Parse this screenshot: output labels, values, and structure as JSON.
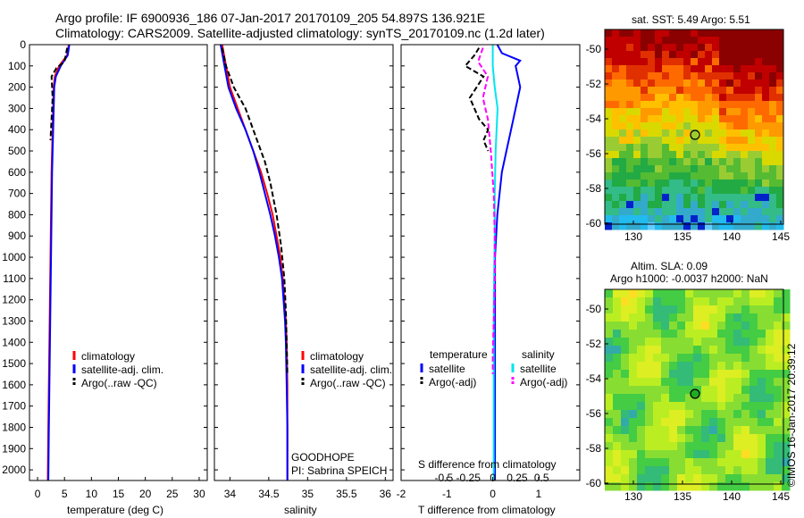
{
  "header": {
    "line1": "Argo profile: IF 6900936_186 07-Jan-2017 20170109_205 54.897S 136.921E",
    "line2": "Climatology: CARS2009. Satellite-adjusted climatology: synTS_20170109.nc (1.2d later)"
  },
  "colors": {
    "climatology": "#ff0000",
    "satellite": "#0000ff",
    "argo": "#000000",
    "sal_satellite": "#00e5ee",
    "sal_argo": "#ff00ff"
  },
  "chart_data": [
    {
      "type": "line",
      "name": "temperature",
      "xlabel": "temperature (deg C)",
      "ylabel": "",
      "xlim": [
        -1.5,
        31.5
      ],
      "ylim": [
        2050,
        0
      ],
      "xticks": [
        0,
        5,
        10,
        15,
        20,
        25,
        30
      ],
      "yticks": [
        0,
        100,
        200,
        300,
        400,
        500,
        600,
        700,
        800,
        900,
        1000,
        1100,
        1200,
        1300,
        1400,
        1500,
        1600,
        1700,
        1800,
        1900,
        2000
      ],
      "legend": [
        "climatology",
        "satellite-adj. clim.",
        "Argo(..raw -QC)"
      ],
      "legend_position": "lower-right",
      "series": [
        {
          "name": "climatology",
          "style": "solid",
          "x": [
            5.8,
            5.5,
            4.0,
            3.2,
            3.0,
            2.8,
            2.6,
            2.5,
            2.4,
            2.3,
            2.2,
            2.1,
            2.0,
            1.9
          ],
          "y": [
            0,
            50,
            100,
            150,
            200,
            400,
            600,
            800,
            1000,
            1200,
            1400,
            1600,
            1800,
            2050
          ]
        },
        {
          "name": "satellite-adj. clim.",
          "style": "solid",
          "x": [
            5.9,
            5.6,
            4.3,
            3.4,
            3.1,
            2.9,
            2.7,
            2.6,
            2.5,
            2.4,
            2.3,
            2.2,
            2.1,
            2.0
          ],
          "y": [
            0,
            50,
            100,
            150,
            200,
            400,
            600,
            800,
            1000,
            1200,
            1400,
            1600,
            1800,
            2050
          ]
        },
        {
          "name": "Argo(..raw -QC)",
          "style": "dashed",
          "x": [
            5.5,
            5.0,
            3.5,
            2.6,
            2.8,
            2.5,
            2.4
          ],
          "y": [
            15,
            80,
            110,
            150,
            250,
            400,
            450
          ]
        }
      ]
    },
    {
      "type": "line",
      "name": "salinity",
      "xlabel": "salinity",
      "ylabel": "",
      "xlim": [
        33.8,
        36.1
      ],
      "ylim": [
        2050,
        0
      ],
      "xticks": [
        34,
        34.5,
        35,
        35.5,
        36
      ],
      "xtick_labels": [
        "34",
        "34.5",
        "35",
        "35.5",
        "36"
      ],
      "legend": [
        "climatology",
        "satellite-adj. clim.",
        "Argo(..raw -QC)"
      ],
      "legend_position": "lower-right",
      "annotations": [
        "GOODHOPE",
        "PI: Sabrina SPEICH"
      ],
      "series": [
        {
          "name": "climatology",
          "style": "solid",
          "x": [
            33.9,
            33.95,
            34.0,
            34.1,
            34.2,
            34.3,
            34.4,
            34.48,
            34.55,
            34.6,
            34.65,
            34.68,
            34.7,
            34.72,
            34.73,
            34.74,
            34.74,
            34.74
          ],
          "y": [
            0,
            100,
            200,
            300,
            400,
            500,
            600,
            700,
            800,
            900,
            1000,
            1100,
            1200,
            1300,
            1400,
            1600,
            1800,
            2050
          ]
        },
        {
          "name": "satellite-adj. clim.",
          "style": "solid",
          "x": [
            33.88,
            33.93,
            33.98,
            34.08,
            34.2,
            34.3,
            34.38,
            34.45,
            34.52,
            34.58,
            34.63,
            34.67,
            34.69,
            34.71,
            34.72,
            34.73,
            34.74,
            34.74
          ],
          "y": [
            0,
            100,
            200,
            300,
            400,
            500,
            600,
            700,
            800,
            900,
            1000,
            1100,
            1200,
            1300,
            1400,
            1600,
            1800,
            2050
          ]
        },
        {
          "name": "Argo(..raw -QC)",
          "style": "dashed",
          "x": [
            33.9,
            33.95,
            34.05,
            34.2,
            34.35,
            34.45,
            34.52,
            34.6,
            34.66,
            34.7,
            34.72,
            34.73,
            34.74
          ],
          "y": [
            15,
            100,
            200,
            300,
            450,
            550,
            650,
            800,
            950,
            1100,
            1250,
            1400,
            1550
          ]
        }
      ]
    },
    {
      "type": "line",
      "name": "differences",
      "xlabel": "T difference from climatology",
      "xlabel2": "S difference from climatology",
      "ylabel": "",
      "xlim": [
        -2.0,
        1.9
      ],
      "ylim": [
        2050,
        0
      ],
      "xticks": [
        -2,
        -1,
        0,
        1
      ],
      "xtick_labels": [
        "-2",
        "-1",
        "0",
        "1"
      ],
      "xticks2": [
        -0.5,
        -0.25,
        0,
        0.25,
        0.5
      ],
      "xtick2_labels": [
        "-0.5",
        "-0.25",
        "0",
        "0.25",
        "0.5"
      ],
      "legend_groups": [
        "temperature",
        "salinity"
      ],
      "legend": [
        "satellite",
        "Argo(-adj)",
        "satellite",
        "Argo(-adj)"
      ],
      "legend_position": "lower-right",
      "series": [
        {
          "name": "temperature satellite",
          "style": "solid",
          "x": [
            0.1,
            0.2,
            0.6,
            0.5,
            0.6,
            0.5,
            0.4,
            0.3,
            0.2,
            0.1,
            0.05,
            0.05,
            0.05
          ],
          "y": [
            0,
            40,
            75,
            100,
            200,
            300,
            400,
            500,
            600,
            800,
            1000,
            1500,
            2050
          ]
        },
        {
          "name": "temperature Argo(-adj)",
          "style": "dashed",
          "x": [
            -0.3,
            -0.4,
            -0.6,
            -0.2,
            -0.5,
            -0.3,
            -0.1,
            -0.2,
            -0.1
          ],
          "y": [
            15,
            50,
            100,
            150,
            250,
            350,
            400,
            450,
            500
          ]
        },
        {
          "name": "salinity satellite",
          "style": "solid",
          "x": [
            0.0,
            0.0,
            0.02,
            0.05,
            0.03,
            0.02,
            0.02,
            0.01,
            0.01,
            0.01
          ],
          "y": [
            0,
            100,
            200,
            300,
            500,
            700,
            900,
            1200,
            1500,
            2050
          ]
        },
        {
          "name": "salinity Argo(-adj)",
          "style": "dashed",
          "x": [
            -0.1,
            -0.15,
            -0.05,
            -0.1,
            -0.05,
            -0.02,
            0.01,
            0.02,
            0.02,
            0.01,
            0.0,
            0.0
          ],
          "y": [
            15,
            80,
            150,
            250,
            350,
            500,
            700,
            900,
            1100,
            1300,
            1450,
            1550
          ]
        }
      ]
    }
  ],
  "maps": {
    "sst": {
      "title": "sat. SST: 5.49 Argo: 5.51",
      "yticks": [
        "-50",
        "-52",
        "-54",
        "-56",
        "-58",
        "-60"
      ],
      "xticks": [
        "130",
        "135",
        "140",
        "145"
      ],
      "marker_lon": 136.921,
      "marker_lat": -54.897
    },
    "sla": {
      "title1": "Altim. SLA: 0.09",
      "title2": "Argo h1000: -0.0037 h2000: NaN",
      "yticks": [
        "-50",
        "-52",
        "-54",
        "-56",
        "-58",
        "-60"
      ],
      "xticks": [
        "130",
        "135",
        "140",
        "145"
      ],
      "marker_lon": 136.921,
      "marker_lat": -54.897
    },
    "stamp": "©IMOS 16-Jan-2017 20:39:12"
  },
  "temp_panel": {
    "ytick_labels": [
      "0",
      "100",
      "200",
      "300",
      "400",
      "500",
      "600",
      "700",
      "800",
      "900",
      "1000",
      "1100",
      "1200",
      "1300",
      "1400",
      "1500",
      "1600",
      "1700",
      "1800",
      "1900",
      "2000"
    ],
    "xtick_labels": [
      "0",
      "5",
      "10",
      "15",
      "20",
      "25",
      "30"
    ]
  }
}
